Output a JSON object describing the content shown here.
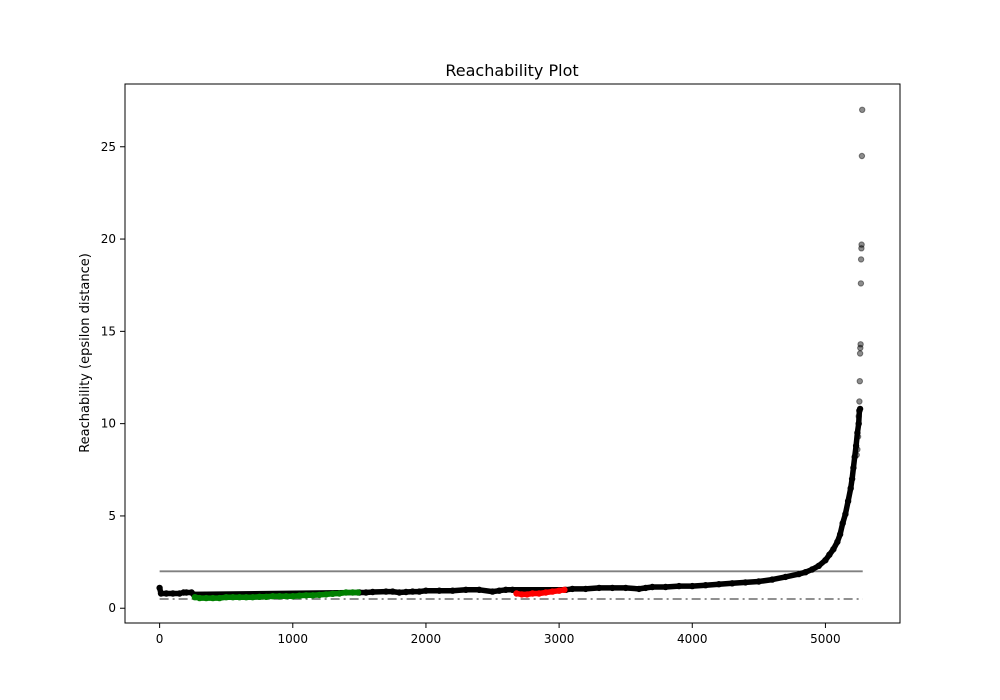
{
  "chart_data": {
    "type": "scatter",
    "title": "Reachability Plot",
    "xlabel": "",
    "ylabel": "Reachability (epsilon distance)",
    "xlim": [
      -260,
      5560
    ],
    "ylim": [
      -0.8,
      28.4
    ],
    "xticks": [
      0,
      1000,
      2000,
      3000,
      4000,
      5000
    ],
    "yticks": [
      0,
      5,
      10,
      15,
      20,
      25
    ],
    "grid": false,
    "legend": "none",
    "series": [
      {
        "color": "#000000",
        "points": [
          [
            0,
            1.1
          ],
          [
            10,
            0.8
          ],
          [
            50,
            0.8
          ],
          [
            100,
            0.8
          ],
          [
            150,
            0.8
          ],
          [
            180,
            0.85
          ],
          [
            200,
            0.85
          ],
          [
            240,
            0.85
          ],
          [
            255,
            0.75
          ],
          [
            1500,
            0.85
          ],
          [
            1550,
            0.85
          ],
          [
            1600,
            0.88
          ],
          [
            1700,
            0.9
          ],
          [
            1750,
            0.9
          ],
          [
            1800,
            0.85
          ],
          [
            1850,
            0.88
          ],
          [
            1900,
            0.9
          ],
          [
            1950,
            0.9
          ],
          [
            2000,
            0.95
          ],
          [
            2100,
            0.95
          ],
          [
            2200,
            0.95
          ],
          [
            2300,
            1.0
          ],
          [
            2400,
            1.0
          ],
          [
            2500,
            0.9
          ],
          [
            2550,
            0.95
          ],
          [
            2600,
            1.0
          ],
          [
            2650,
            1.0
          ],
          [
            3050,
            1.0
          ],
          [
            3100,
            1.05
          ],
          [
            3200,
            1.05
          ],
          [
            3300,
            1.1
          ],
          [
            3400,
            1.1
          ],
          [
            3500,
            1.1
          ],
          [
            3600,
            1.05
          ],
          [
            3650,
            1.1
          ],
          [
            3700,
            1.15
          ],
          [
            3800,
            1.15
          ],
          [
            3900,
            1.2
          ],
          [
            4000,
            1.2
          ],
          [
            4100,
            1.25
          ],
          [
            4200,
            1.3
          ],
          [
            4300,
            1.35
          ],
          [
            4400,
            1.4
          ],
          [
            4500,
            1.45
          ],
          [
            4600,
            1.55
          ],
          [
            4700,
            1.7
          ],
          [
            4800,
            1.85
          ],
          [
            4850,
            1.95
          ],
          [
            4900,
            2.1
          ],
          [
            4950,
            2.3
          ],
          [
            5000,
            2.6
          ],
          [
            5030,
            2.9
          ],
          [
            5060,
            3.2
          ],
          [
            5090,
            3.6
          ],
          [
            5110,
            4.0
          ],
          [
            5130,
            4.6
          ],
          [
            5150,
            5.1
          ],
          [
            5170,
            5.8
          ],
          [
            5190,
            6.5
          ],
          [
            5200,
            7.0
          ],
          [
            5210,
            7.6
          ],
          [
            5220,
            8.2
          ],
          [
            5230,
            8.8
          ],
          [
            5240,
            9.5
          ],
          [
            5250,
            10.0
          ],
          [
            5255,
            10.7
          ],
          [
            5260,
            10.8
          ]
        ]
      },
      {
        "color": "#008000",
        "points": [
          [
            265,
            0.6
          ],
          [
            300,
            0.55
          ],
          [
            350,
            0.55
          ],
          [
            400,
            0.55
          ],
          [
            450,
            0.55
          ],
          [
            500,
            0.6
          ],
          [
            550,
            0.6
          ],
          [
            600,
            0.6
          ],
          [
            650,
            0.6
          ],
          [
            700,
            0.6
          ],
          [
            750,
            0.62
          ],
          [
            800,
            0.62
          ],
          [
            850,
            0.65
          ],
          [
            900,
            0.65
          ],
          [
            950,
            0.65
          ],
          [
            1000,
            0.65
          ],
          [
            1050,
            0.68
          ],
          [
            1100,
            0.7
          ],
          [
            1150,
            0.7
          ],
          [
            1200,
            0.72
          ],
          [
            1250,
            0.75
          ],
          [
            1300,
            0.78
          ],
          [
            1350,
            0.8
          ],
          [
            1400,
            0.85
          ],
          [
            1450,
            0.85
          ],
          [
            1490,
            0.85
          ]
        ]
      },
      {
        "color": "#ff0000",
        "points": [
          [
            2680,
            0.8
          ],
          [
            2720,
            0.75
          ],
          [
            2760,
            0.75
          ],
          [
            2800,
            0.8
          ],
          [
            2850,
            0.8
          ],
          [
            2900,
            0.85
          ],
          [
            2950,
            0.9
          ],
          [
            3000,
            0.95
          ],
          [
            3040,
            1.0
          ]
        ]
      },
      {
        "color": "#000000",
        "alpha": 0.45,
        "points": [
          [
            5235,
            8.3
          ],
          [
            5240,
            8.6
          ],
          [
            5245,
            9.3
          ],
          [
            5250,
            10.4
          ],
          [
            5255,
            11.2
          ],
          [
            5258,
            12.3
          ],
          [
            5260,
            13.8
          ],
          [
            5262,
            14.1
          ],
          [
            5264,
            14.3
          ],
          [
            5266,
            17.6
          ],
          [
            5268,
            18.9
          ],
          [
            5270,
            19.5
          ],
          [
            5272,
            19.7
          ],
          [
            5274,
            24.5
          ],
          [
            5276,
            27.0
          ]
        ]
      }
    ],
    "reference_lines": [
      {
        "y": 2.0,
        "x": [
          0,
          5280
        ],
        "style": "solid",
        "color": "#808080"
      },
      {
        "y": 0.5,
        "x": [
          0,
          5280
        ],
        "style": "dashdot",
        "color": "#808080"
      }
    ]
  }
}
